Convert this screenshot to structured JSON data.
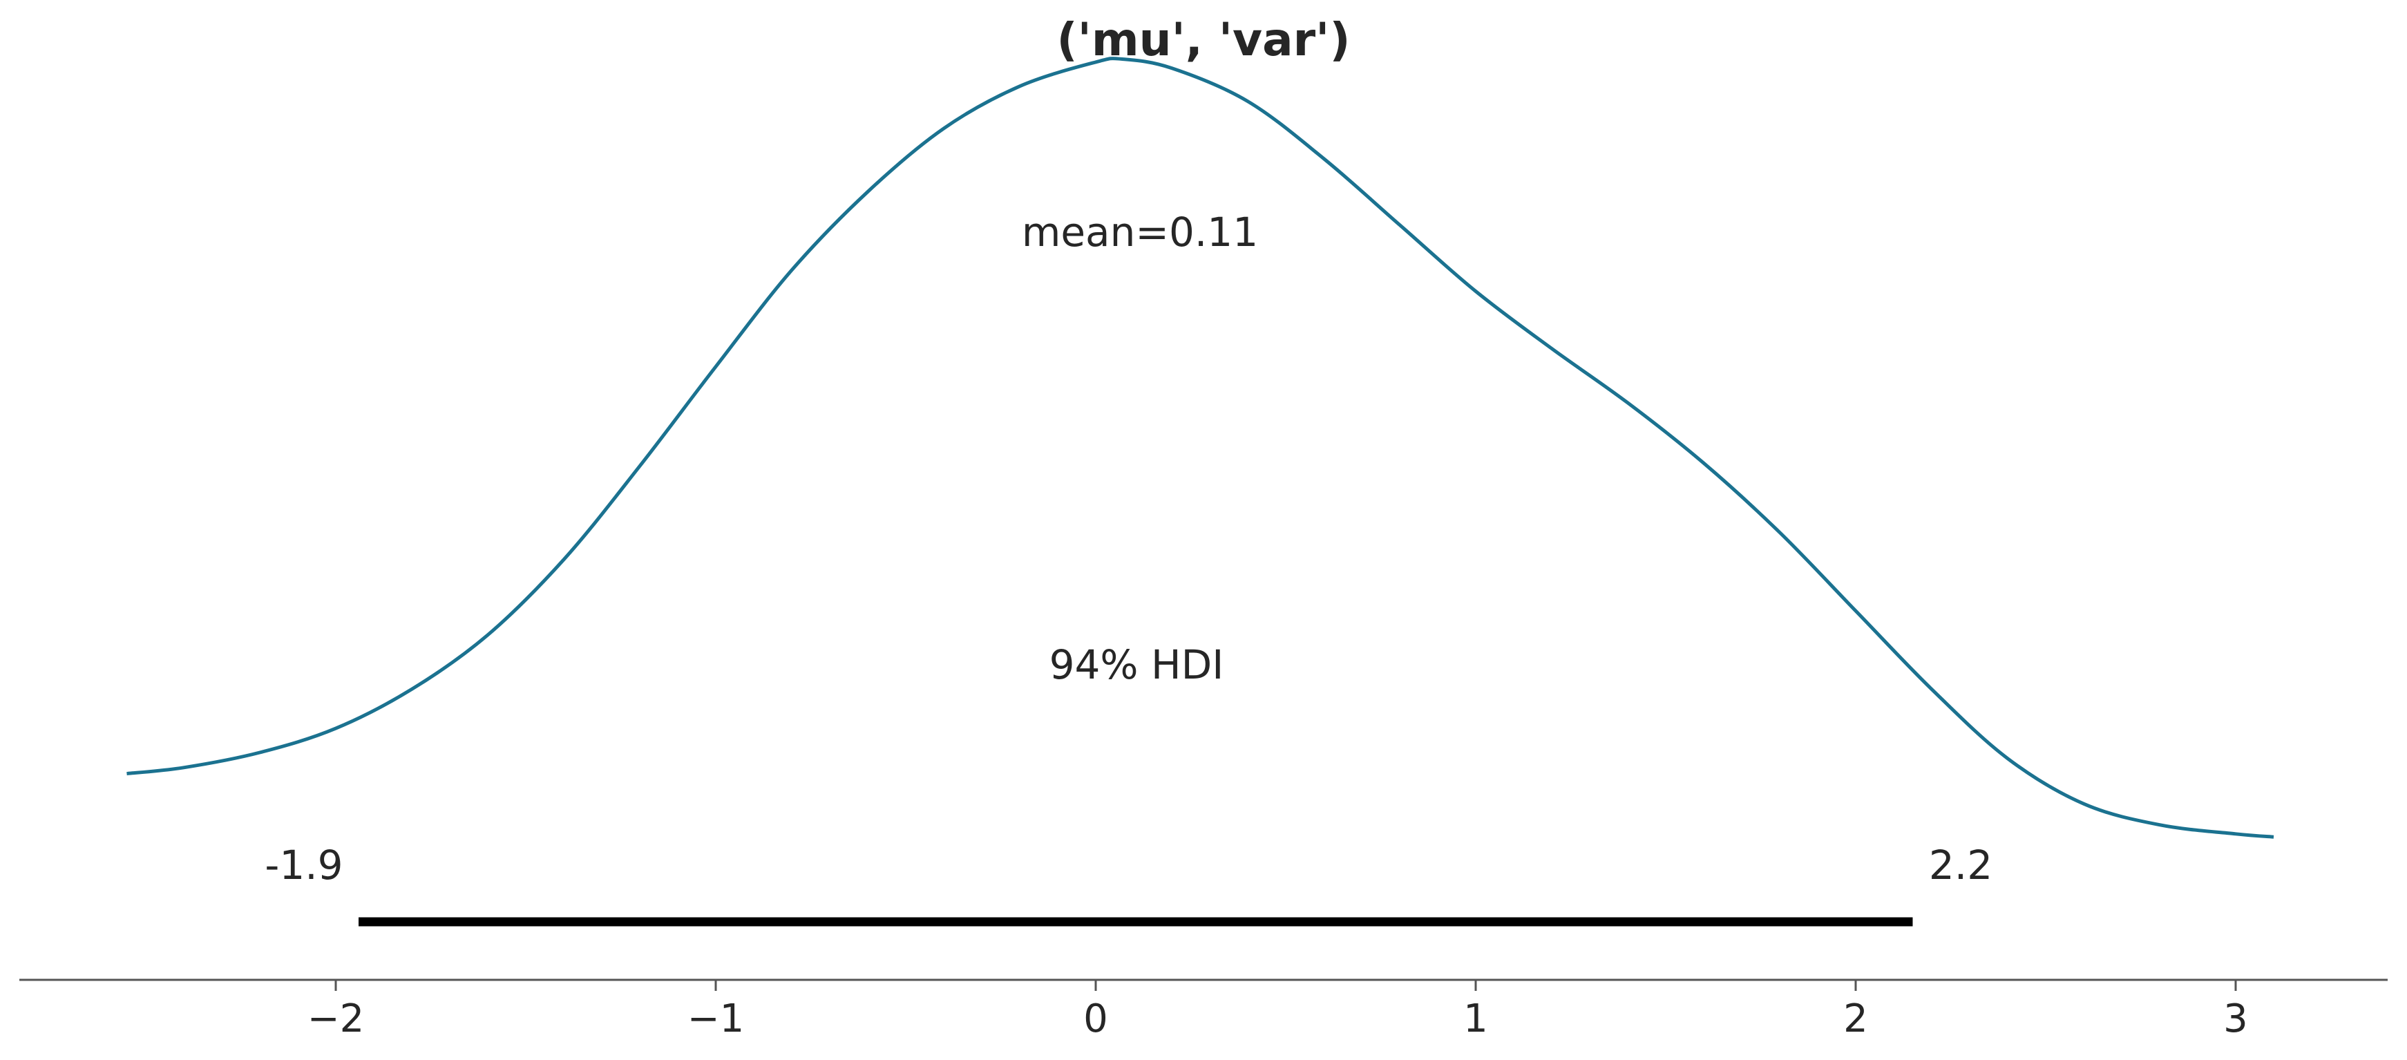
{
  "chart_data": {
    "type": "line",
    "title": "('mu', 'var')",
    "xlabel": "",
    "ylabel": "",
    "xlim": [
      -2.8,
      3.4
    ],
    "ylim": [
      -0.02,
      0.34
    ],
    "grid": false,
    "x_ticks": [
      -2,
      -1,
      0,
      1,
      2,
      3
    ],
    "x_tick_labels": [
      "−2",
      "−1",
      "0",
      "1",
      "2",
      "3"
    ],
    "series": [
      {
        "color": "#1b7290",
        "x": [
          -2.55,
          -2.4,
          -2.2,
          -2.0,
          -1.8,
          -1.6,
          -1.4,
          -1.2,
          -1.0,
          -0.8,
          -0.6,
          -0.4,
          -0.2,
          0.0,
          0.07,
          0.2,
          0.4,
          0.6,
          0.8,
          1.0,
          1.2,
          1.4,
          1.6,
          1.8,
          2.0,
          2.2,
          2.4,
          2.6,
          2.8,
          3.0,
          3.1
        ],
        "y": [
          0.072,
          0.074,
          0.079,
          0.087,
          0.1,
          0.118,
          0.143,
          0.174,
          0.207,
          0.239,
          0.265,
          0.286,
          0.3,
          0.308,
          0.309,
          0.306,
          0.295,
          0.276,
          0.254,
          0.232,
          0.213,
          0.195,
          0.175,
          0.152,
          0.126,
          0.1,
          0.077,
          0.062,
          0.055,
          0.052,
          0.051
        ]
      }
    ],
    "annotations": {
      "mean_label": "mean=0.11",
      "hdi_label": "94% HDI",
      "hdi_lower": -1.94,
      "hdi_upper": 2.15,
      "hdi_lower_label": "-1.9",
      "hdi_upper_label": "2.2",
      "hdi_color": "#000000"
    }
  }
}
